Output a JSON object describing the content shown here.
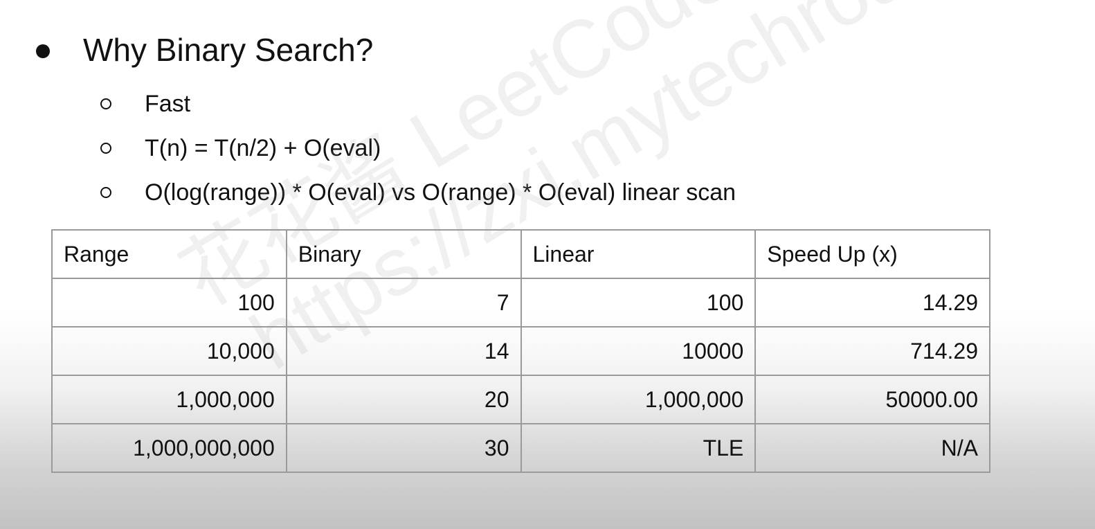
{
  "heading": "Why Binary Search?",
  "sub_bullets": [
    "Fast",
    "T(n) = T(n/2) + O(eval)",
    "O(log(range)) * O(eval) vs O(range) * O(eval) linear scan"
  ],
  "table": {
    "headers": [
      "Range",
      "Binary",
      "Linear",
      "Speed Up (x)"
    ],
    "rows": [
      [
        "100",
        "7",
        "100",
        "14.29"
      ],
      [
        "10,000",
        "14",
        "10000",
        "714.29"
      ],
      [
        "1,000,000",
        "20",
        "1,000,000",
        "50000.00"
      ],
      [
        "1,000,000,000",
        "30",
        "TLE",
        "N/A"
      ]
    ]
  },
  "watermark": {
    "line1": "花花酱 LeetCode",
    "line2": "https://zxi.mytechroad.com/blog/"
  }
}
